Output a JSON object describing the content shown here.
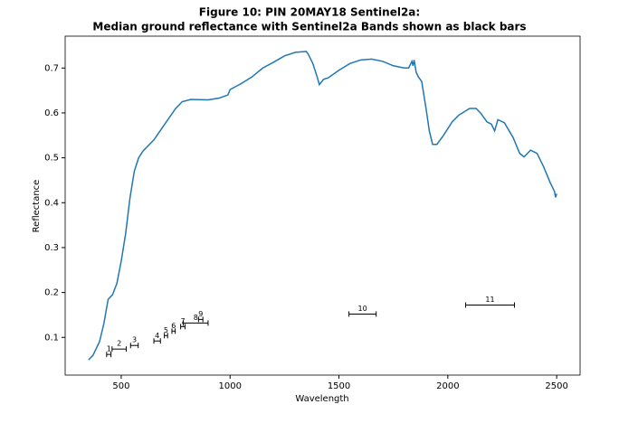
{
  "chart_data": {
    "type": "line",
    "title": [
      "Figure 10: PIN 20MAY18  Sentinel2a:",
      "Median ground reflectance with Sentinel2a Bands shown as black bars"
    ],
    "x_label": "Wavelength",
    "y_label": "Reflectance",
    "x": [
      350,
      370,
      400,
      420,
      440,
      460,
      480,
      500,
      520,
      540,
      560,
      580,
      600,
      650,
      700,
      750,
      780,
      820,
      900,
      950,
      990,
      1000,
      1050,
      1100,
      1150,
      1200,
      1250,
      1300,
      1350,
      1360,
      1380,
      1400,
      1410,
      1430,
      1450,
      1500,
      1550,
      1600,
      1650,
      1700,
      1750,
      1800,
      1820,
      1835,
      1840,
      1845,
      1855,
      1865,
      1880,
      1900,
      1915,
      1930,
      1950,
      1980,
      2000,
      2020,
      2050,
      2100,
      2130,
      2150,
      2180,
      2200,
      2215,
      2230,
      2260,
      2300,
      2330,
      2350,
      2380,
      2410,
      2440,
      2470,
      2490,
      2495,
      2500
    ],
    "values": [
      0.05,
      0.06,
      0.09,
      0.13,
      0.185,
      0.195,
      0.22,
      0.27,
      0.33,
      0.41,
      0.47,
      0.5,
      0.515,
      0.54,
      0.575,
      0.61,
      0.625,
      0.63,
      0.629,
      0.633,
      0.64,
      0.652,
      0.665,
      0.68,
      0.7,
      0.713,
      0.727,
      0.735,
      0.737,
      0.73,
      0.71,
      0.68,
      0.663,
      0.675,
      0.678,
      0.695,
      0.71,
      0.718,
      0.72,
      0.715,
      0.705,
      0.7,
      0.7,
      0.715,
      0.705,
      0.718,
      0.69,
      0.68,
      0.67,
      0.61,
      0.56,
      0.53,
      0.53,
      0.55,
      0.565,
      0.58,
      0.595,
      0.61,
      0.61,
      0.6,
      0.58,
      0.575,
      0.56,
      0.585,
      0.578,
      0.545,
      0.51,
      0.502,
      0.517,
      0.51,
      0.48,
      0.445,
      0.425,
      0.412,
      0.42
    ],
    "color": "#1f77b4",
    "bands": [
      {
        "label": "1",
        "xmin": 433,
        "xmax": 453,
        "y": 0.062
      },
      {
        "label": "2",
        "xmin": 458,
        "xmax": 523,
        "y": 0.074
      },
      {
        "label": "3",
        "xmin": 543,
        "xmax": 578,
        "y": 0.082
      },
      {
        "label": "4",
        "xmin": 650,
        "xmax": 680,
        "y": 0.092
      },
      {
        "label": "5",
        "xmin": 698,
        "xmax": 713,
        "y": 0.104
      },
      {
        "label": "6",
        "xmin": 733,
        "xmax": 748,
        "y": 0.114
      },
      {
        "label": "7",
        "xmin": 773,
        "xmax": 793,
        "y": 0.124
      },
      {
        "label": "8",
        "xmin": 785,
        "xmax": 899,
        "y": 0.132
      },
      {
        "label": "9",
        "xmin": 855,
        "xmax": 875,
        "y": 0.14
      },
      {
        "label": "10",
        "xmin": 1546,
        "xmax": 1671,
        "y": 0.152
      },
      {
        "label": "11",
        "xmin": 2082,
        "xmax": 2306,
        "y": 0.172
      }
    ],
    "band_color": "#000000",
    "xlim": [
      242.5,
      2607.5
    ],
    "xticks": [
      500,
      1000,
      1500,
      2000,
      2500
    ],
    "ylim": [
      0.016,
      0.771
    ],
    "yticks": [
      0.1,
      0.2,
      0.3,
      0.4,
      0.5,
      0.6,
      0.7
    ]
  }
}
